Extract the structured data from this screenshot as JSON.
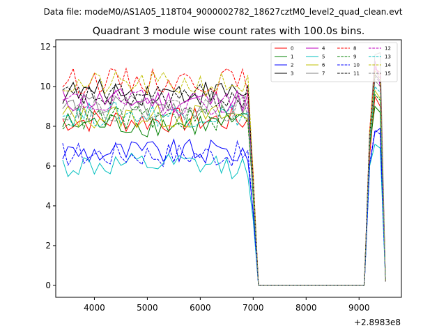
{
  "chart_data": {
    "type": "line",
    "suptitle": "Data file: modeM0/AS1A05_118T04_9000002782_18627cztM0_level2_quad_clean.evt",
    "title": "Quadrant 3 module wise count rates with 100.0s bins.",
    "xlabel": "",
    "ylabel": "",
    "x_offset_label": "+2.8983e8",
    "xlim": [
      3270,
      9800
    ],
    "ylim": [
      -0.6,
      12.35
    ],
    "xticks": [
      4000,
      5000,
      6000,
      7000,
      8000,
      9000
    ],
    "yticks": [
      0,
      2,
      4,
      6,
      8,
      10,
      12
    ],
    "grid": false,
    "legend": {
      "placement": "top-right",
      "columns": 4
    },
    "bins": {
      "active_segment_1_x": [
        3400,
        3500,
        3600,
        3700,
        3800,
        3900,
        4000,
        4100,
        4200,
        4300,
        4400,
        4500,
        4600,
        4700,
        4800,
        4900,
        5000,
        5100,
        5200,
        5300,
        5400,
        5500,
        5600,
        5700,
        5800,
        5900,
        6000,
        6100,
        6200,
        6300,
        6400,
        6500,
        6600,
        6700,
        6800,
        6900
      ],
      "gap_x": [
        7000,
        7100,
        7200,
        7300,
        7400,
        7500,
        7600,
        7700,
        7800,
        7900,
        8000,
        8100,
        8200,
        8300,
        8400,
        8500,
        8600,
        8700,
        8800,
        8900,
        9000,
        9100
      ],
      "active_segment_2_x": [
        9200,
        9300,
        9400,
        9500
      ]
    },
    "series": [
      {
        "name": "0",
        "color": "#ff0000",
        "dash": "solid",
        "level": 8.3,
        "end": [
          6.5,
          9.5,
          9.0,
          0.2
        ]
      },
      {
        "name": "1",
        "color": "#008000",
        "dash": "solid",
        "level": 8.1,
        "end": [
          7.0,
          9.0,
          8.7,
          0.2
        ]
      },
      {
        "name": "2",
        "color": "#0000ff",
        "dash": "solid",
        "level": 6.7,
        "end": [
          6.0,
          7.7,
          7.9,
          0.2
        ]
      },
      {
        "name": "3",
        "color": "#000000",
        "dash": "solid",
        "level": 9.7,
        "end": [
          7.5,
          10.6,
          10.3,
          0.2
        ]
      },
      {
        "name": "4",
        "color": "#bf00bf",
        "dash": "solid",
        "level": 9.3,
        "end": [
          7.4,
          11.3,
          10.0,
          0.2
        ]
      },
      {
        "name": "5",
        "color": "#00bfbf",
        "dash": "solid",
        "level": 6.0,
        "end": [
          6.0,
          7.1,
          6.9,
          0.2
        ]
      },
      {
        "name": "6",
        "color": "#bfbf00",
        "dash": "solid",
        "level": 8.5,
        "end": [
          7.3,
          9.8,
          9.4,
          0.2
        ]
      },
      {
        "name": "7",
        "color": "#808080",
        "dash": "solid",
        "level": 9.0,
        "end": [
          7.6,
          11.6,
          11.7,
          0.2
        ]
      },
      {
        "name": "8",
        "color": "#ff0000",
        "dash": "dashed",
        "level": 10.3,
        "end": [
          7.8,
          10.9,
          10.7,
          0.2
        ]
      },
      {
        "name": "9",
        "color": "#008000",
        "dash": "dashed",
        "level": 8.4,
        "end": [
          7.2,
          9.6,
          9.3,
          0.2
        ]
      },
      {
        "name": "10",
        "color": "#0000ff",
        "dash": "dashed",
        "level": 6.6,
        "end": [
          6.1,
          7.8,
          7.6,
          0.2
        ]
      },
      {
        "name": "11",
        "color": "#000000",
        "dash": "dashed",
        "level": 9.5,
        "end": [
          7.5,
          10.5,
          10.2,
          0.2
        ]
      },
      {
        "name": "12",
        "color": "#bf00bf",
        "dash": "dashed",
        "level": 9.2,
        "end": [
          7.4,
          11.0,
          10.5,
          0.2
        ]
      },
      {
        "name": "13",
        "color": "#00bfbf",
        "dash": "dashed",
        "level": 8.6,
        "end": [
          7.2,
          10.0,
          9.7,
          0.2
        ]
      },
      {
        "name": "14",
        "color": "#bfbf00",
        "dash": "dashed",
        "level": 10.1,
        "end": [
          7.7,
          10.8,
          10.4,
          0.2
        ]
      },
      {
        "name": "15",
        "color": "#808080",
        "dash": "dashed",
        "level": 8.9,
        "end": [
          7.4,
          10.3,
          10.0,
          0.2
        ]
      }
    ]
  }
}
